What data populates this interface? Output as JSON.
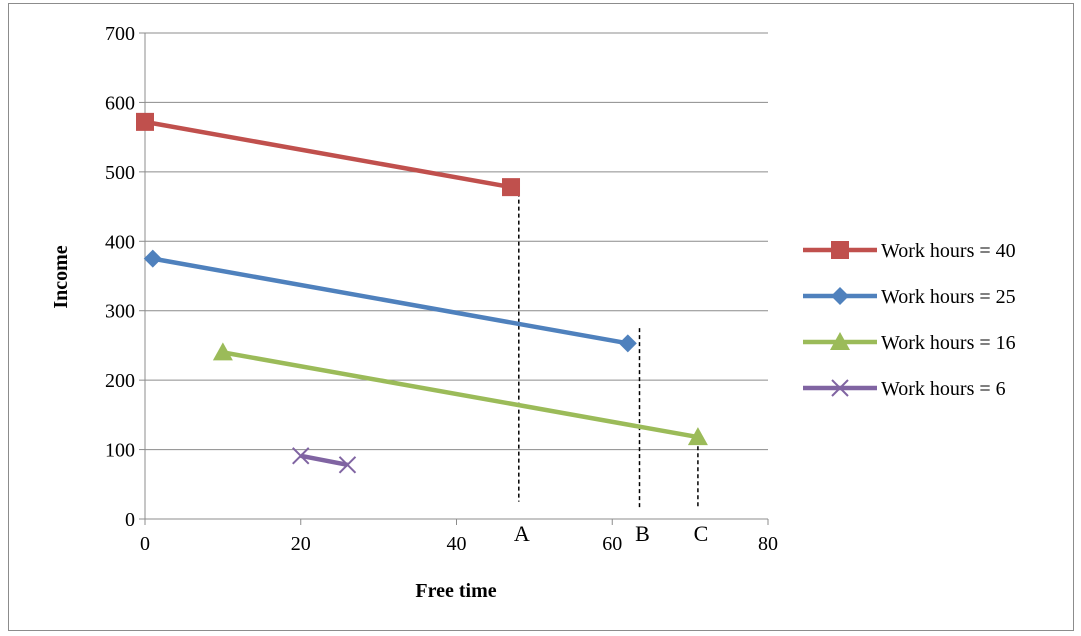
{
  "chart_data": {
    "type": "line",
    "title": "",
    "xlabel": "Free time",
    "ylabel": "Income",
    "xlim": [
      0,
      80
    ],
    "ylim": [
      0,
      700
    ],
    "xticks": [
      0,
      20,
      40,
      60,
      80
    ],
    "yticks": [
      0,
      100,
      200,
      300,
      400,
      500,
      600,
      700
    ],
    "grid": "horizontal",
    "legend_position": "right",
    "series": [
      {
        "name": "Work hours = 40",
        "color": "#c0504d",
        "marker": "square",
        "points": [
          [
            0,
            572
          ],
          [
            47,
            478
          ]
        ]
      },
      {
        "name": "Work hours = 25",
        "color": "#4f81bd",
        "marker": "diamond",
        "points": [
          [
            1,
            375
          ],
          [
            62,
            253
          ]
        ]
      },
      {
        "name": "Work hours = 16",
        "color": "#9bbb59",
        "marker": "triangle",
        "points": [
          [
            10,
            240
          ],
          [
            71,
            118
          ]
        ]
      },
      {
        "name": "Work hours = 6",
        "color": "#8064a2",
        "marker": "x",
        "points": [
          [
            20,
            91
          ],
          [
            26,
            78
          ]
        ]
      }
    ],
    "annotations": [
      {
        "label": "A",
        "x": 48,
        "y_top": 470,
        "y_bottom": 25
      },
      {
        "label": "B",
        "x": 63.5,
        "y_top": 275,
        "y_bottom": 15
      },
      {
        "label": "C",
        "x": 71,
        "y_top": 125,
        "y_bottom": 15
      }
    ]
  }
}
